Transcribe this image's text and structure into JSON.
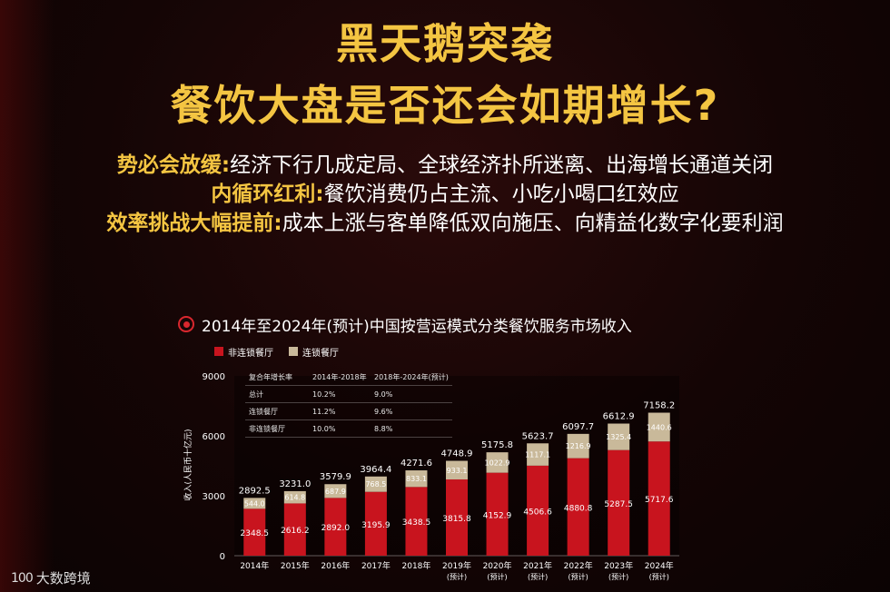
{
  "headline": {
    "line1": "黑天鹅突袭",
    "line2": "餐饮大盘是否还会如期增长?"
  },
  "points": [
    {
      "key": "势必会放缓:",
      "text": "经济下行几成定局、全球经济扑所迷离、出海增长通道关闭"
    },
    {
      "key": "内循环红利:",
      "text": "餐饮消费仍占主流、小吃小喝口红效应"
    },
    {
      "key": "效率挑战大幅提前:",
      "text": "成本上涨与客单降低双向施压、向精益化数字化要利润"
    }
  ],
  "logo": {
    "mark": "100",
    "text": "大数跨境"
  },
  "chart_data": {
    "type": "bar",
    "stacked": true,
    "title": "2014年至2024年(预计)中国按营运模式分类餐饮服务市场收入",
    "ylabel": "收入(人民币十亿元)",
    "xlabel": "",
    "ylim": [
      0,
      9000
    ],
    "yticks": [
      "9000",
      "6000",
      "3000",
      "0"
    ],
    "categories": [
      {
        "year": "2014年",
        "note": ""
      },
      {
        "year": "2015年",
        "note": ""
      },
      {
        "year": "2016年",
        "note": ""
      },
      {
        "year": "2017年",
        "note": ""
      },
      {
        "year": "2018年",
        "note": ""
      },
      {
        "year": "2019年",
        "note": "(预计)"
      },
      {
        "year": "2020年",
        "note": "(预计)"
      },
      {
        "year": "2021年",
        "note": "(预计)"
      },
      {
        "year": "2022年",
        "note": "(预计)"
      },
      {
        "year": "2023年",
        "note": "(预计)"
      },
      {
        "year": "2024年",
        "note": "(预计)"
      }
    ],
    "series": [
      {
        "name": "非连锁餐厅",
        "color": "#c8141e",
        "values": [
          2348.5,
          2616.2,
          2892.0,
          3195.9,
          3438.5,
          3815.8,
          4152.9,
          4506.6,
          4880.8,
          5287.5,
          5717.6
        ]
      },
      {
        "name": "连锁餐厅",
        "color": "#c9b99a",
        "values": [
          544.0,
          614.8,
          687.9,
          768.5,
          833.1,
          933.1,
          1022.9,
          1117.1,
          1216.9,
          1325.4,
          1440.6
        ]
      }
    ],
    "totals": [
      "2892.5",
      "3231.0",
      "3579.9",
      "3964.4",
      "4271.6",
      "4748.9",
      "5175.8",
      "5623.7",
      "6097.7",
      "6612.9",
      "7158.2"
    ],
    "labels_bottom": [
      "2348.5",
      "2616.2",
      "2892.0",
      "3195.9",
      "3438.5",
      "3815.8",
      "4152.9",
      "4506.6",
      "4880.8",
      "5287.5",
      "5717.6"
    ],
    "labels_top": [
      "544.0",
      "614.8",
      "687.9",
      "768.5",
      "833.1",
      "933.1",
      "1022.9",
      "1117.1",
      "1216.9",
      "1325.4",
      "1440.6"
    ],
    "growth_table": {
      "header": [
        "复合年增长率",
        "2014年-2018年",
        "2018年-2024年(预计)"
      ],
      "rows": [
        [
          "总计",
          "10.2%",
          "9.0%"
        ],
        [
          "连锁餐厅",
          "11.2%",
          "9.6%"
        ],
        [
          "非连锁餐厅",
          "10.0%",
          "8.8%"
        ]
      ]
    }
  }
}
